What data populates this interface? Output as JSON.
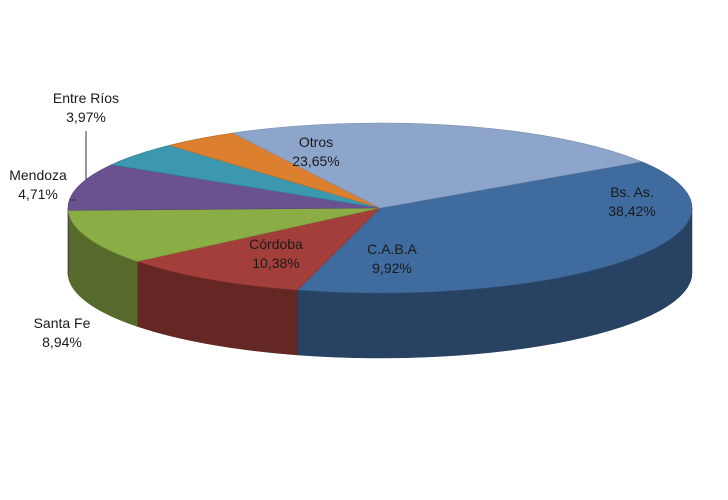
{
  "chart_data": {
    "type": "pie",
    "title": "",
    "style": "3d-exploded-none",
    "slices": [
      {
        "label": "Bs. As.",
        "value_text": "38,42%",
        "value": 38.42,
        "color": "#3f6b9e"
      },
      {
        "label": "C.A.B.A",
        "value_text": "9,92%",
        "value": 9.92,
        "color": "#a33f3a"
      },
      {
        "label": "Córdoba",
        "value_text": "10,38%",
        "value": 10.38,
        "color": "#8aad45"
      },
      {
        "label": "Santa Fe",
        "value_text": "8,94%",
        "value": 8.94,
        "color": "#6a5190"
      },
      {
        "label": "Mendoza",
        "value_text": "4,71%",
        "value": 4.71,
        "color": "#3b98ae"
      },
      {
        "label": "Entre Ríos",
        "value_text": "3,97%",
        "value": 3.97,
        "color": "#dc7f2e"
      },
      {
        "label": "Otros",
        "value_text": "23,65%",
        "value": 23.65,
        "color": "#8ea5cb"
      }
    ]
  }
}
